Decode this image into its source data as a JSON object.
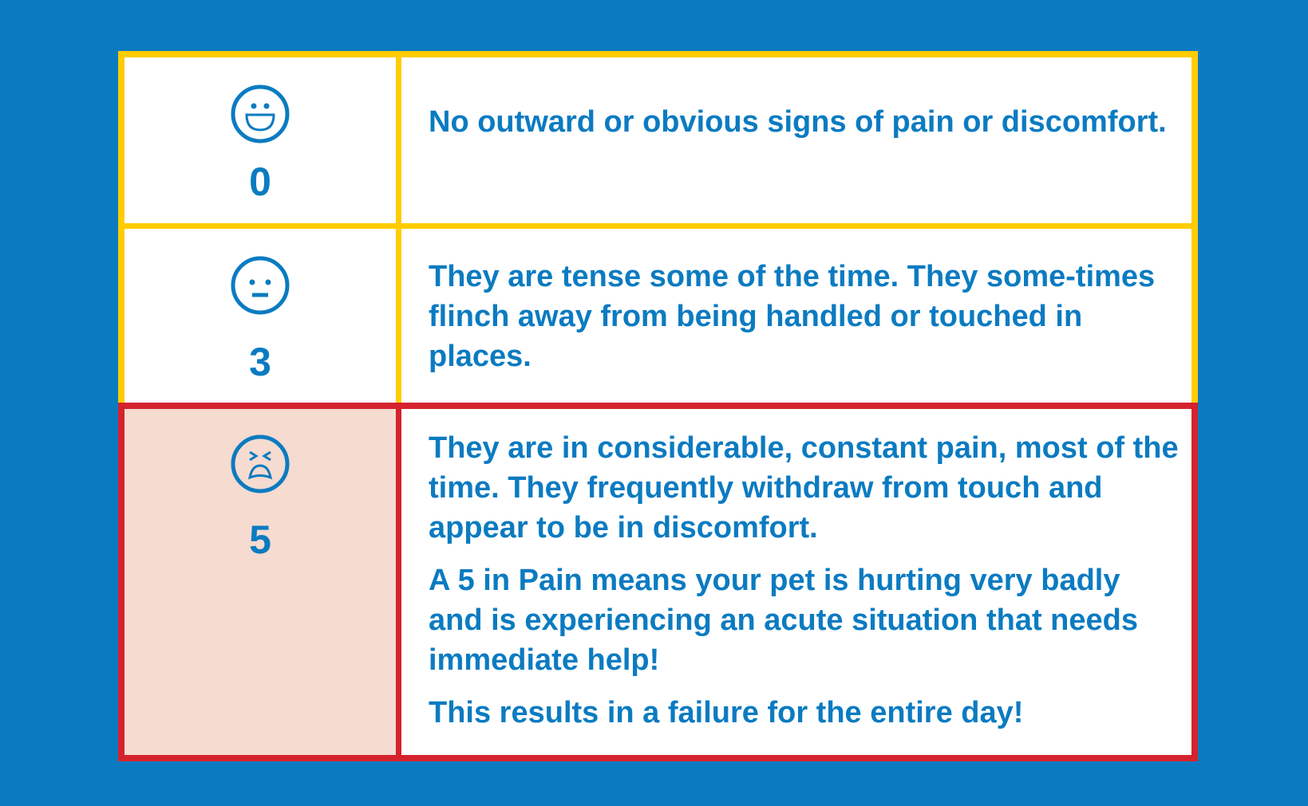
{
  "colors": {
    "background": "#0b7bc1",
    "text": "#0b7bc1",
    "border_ok": "#ffcc00",
    "border_alert": "#d4232d",
    "alert_fill": "#f5dbd0"
  },
  "rows": [
    {
      "score": "0",
      "icon": "grinning-face-icon",
      "paragraphs": [
        "No outward or obvious signs of pain or discomfort."
      ]
    },
    {
      "score": "3",
      "icon": "neutral-face-icon",
      "paragraphs": [
        "They are tense some of the time. They some-times flinch away from being handled or touched in places."
      ]
    },
    {
      "score": "5",
      "icon": "tired-face-icon",
      "paragraphs": [
        "They are in considerable, constant pain, most of the time. They frequently withdraw from touch and appear to be in discomfort.",
        "A 5 in Pain means your pet is hurting very badly and is experiencing an acute situation that needs immediate help!",
        "This results in a failure for the entire day!"
      ]
    }
  ]
}
